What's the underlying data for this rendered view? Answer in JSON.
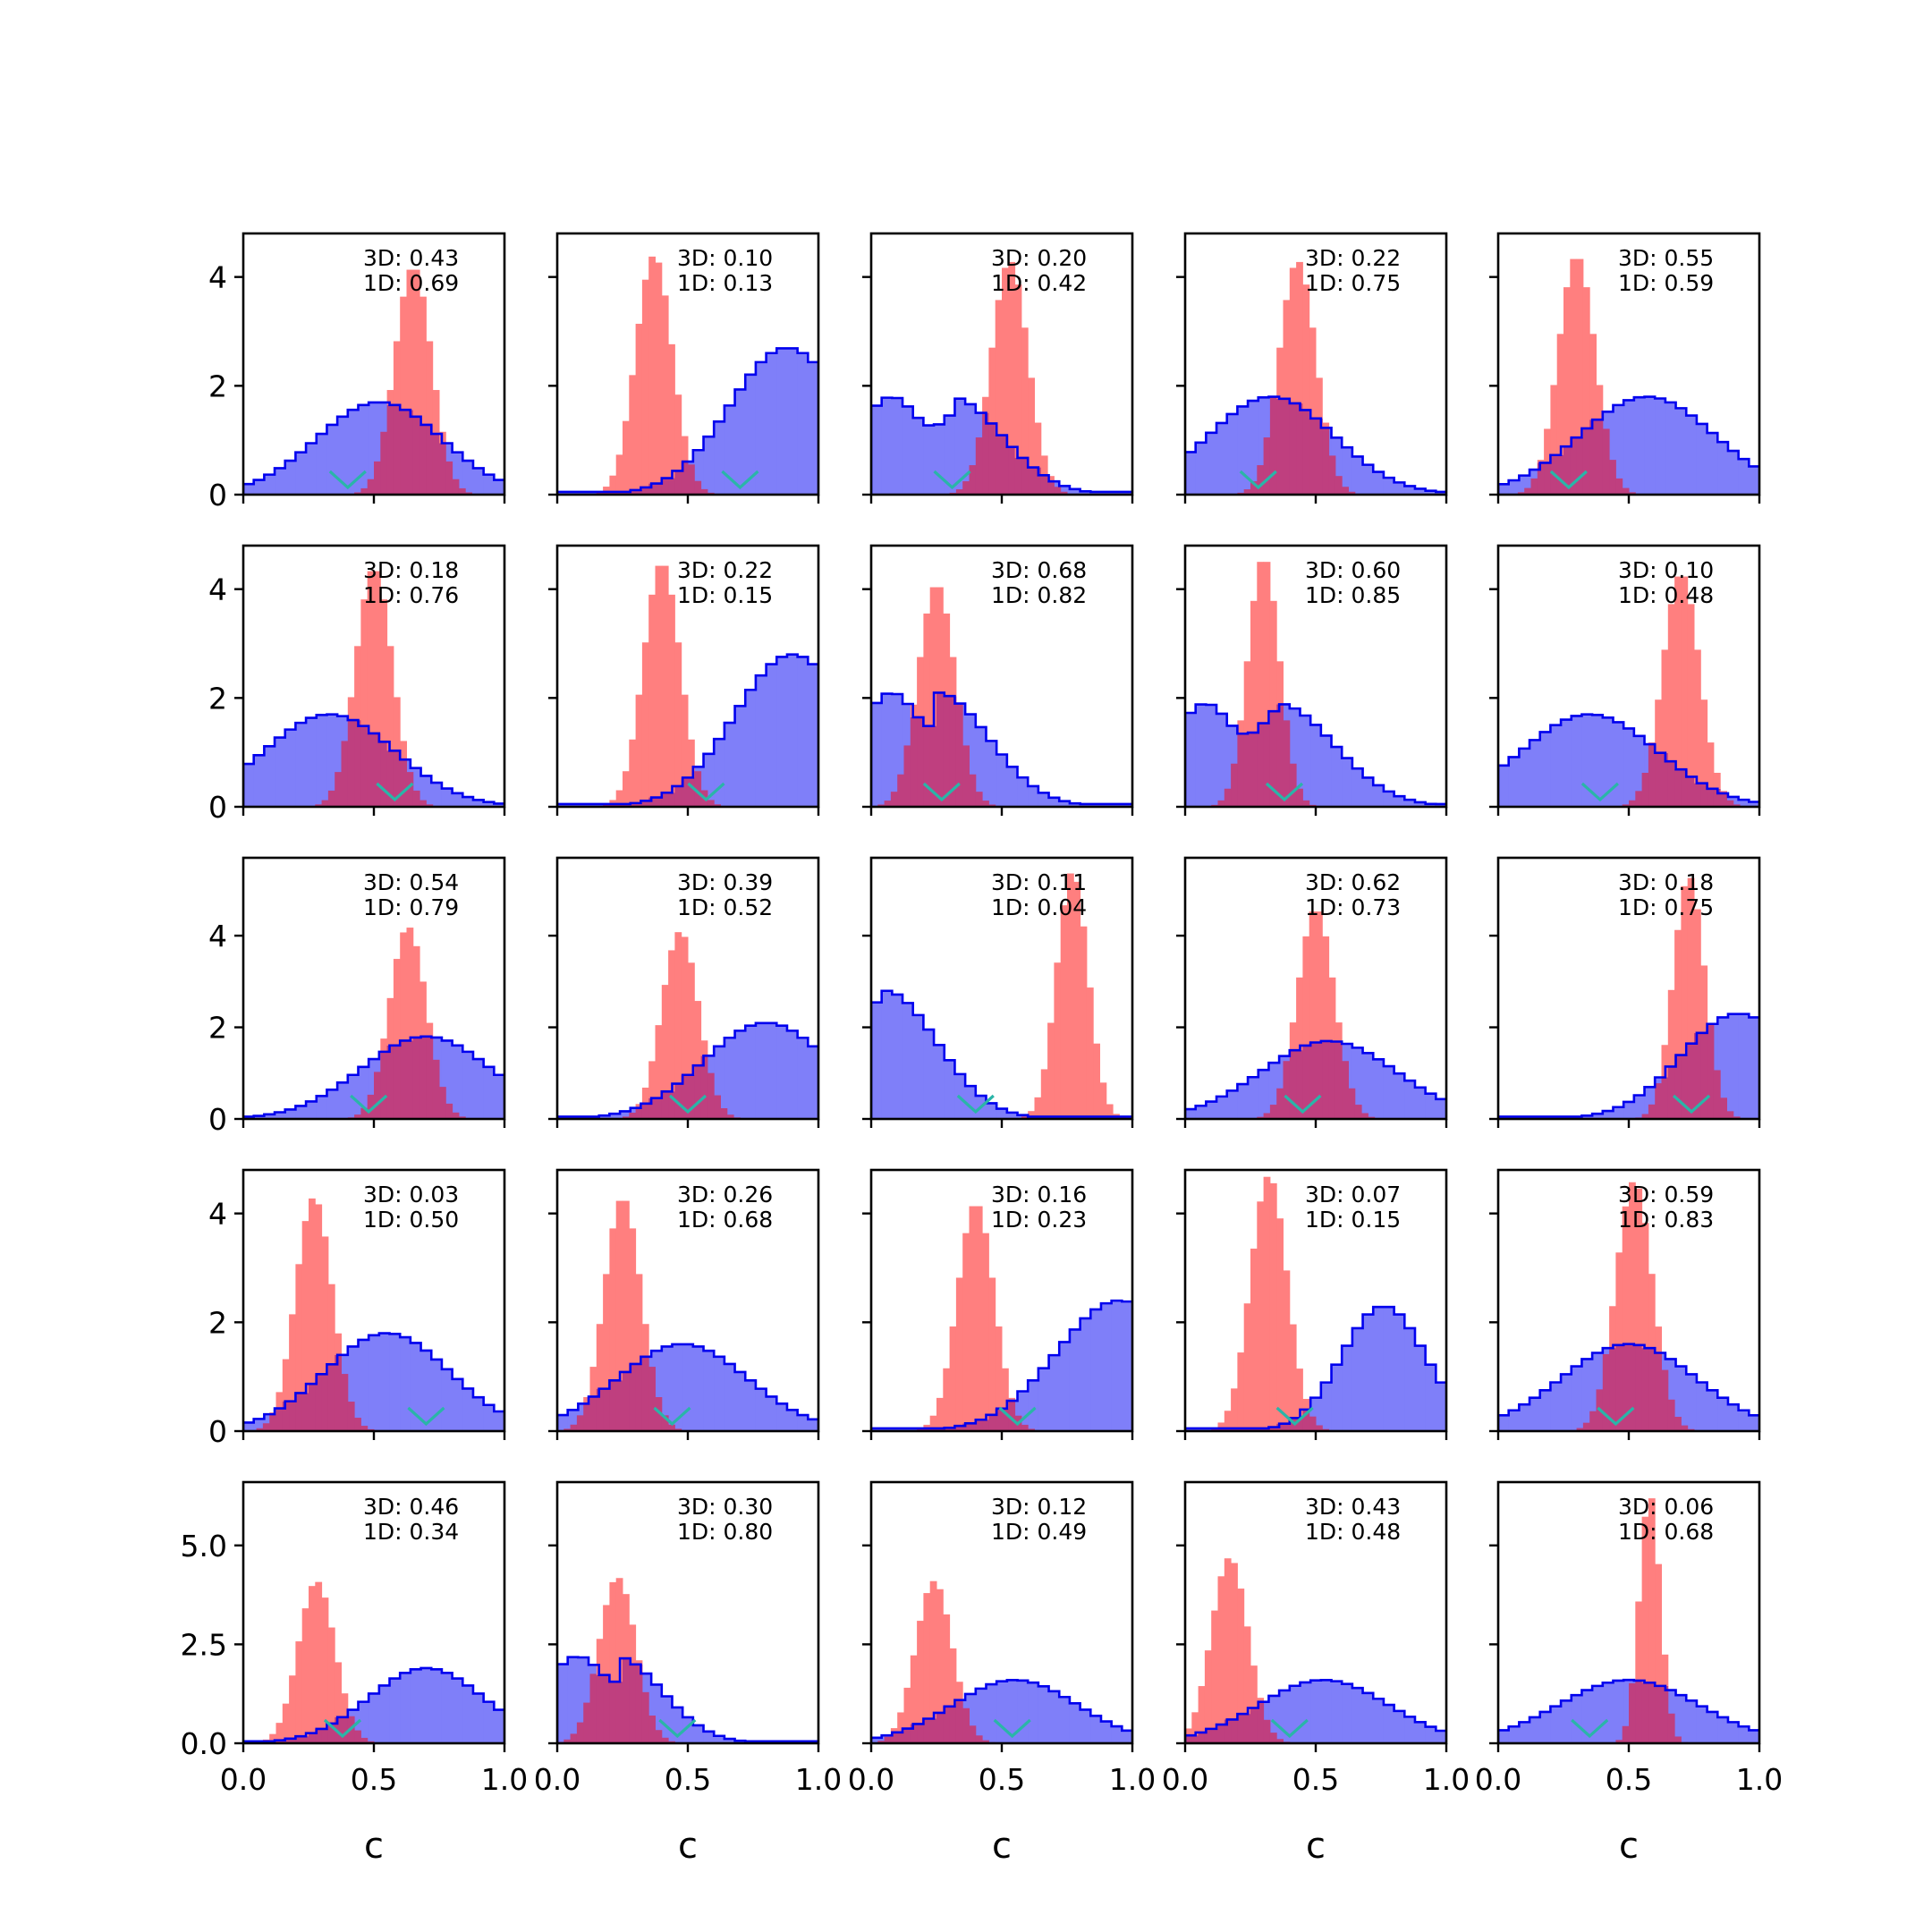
{
  "figure": {
    "rows": 5,
    "cols": 5,
    "xlabel": "c",
    "xticks": [
      "0.0",
      "0.5",
      "1.0"
    ],
    "x_range": [
      0,
      1
    ],
    "colors": {
      "blue_fill": "#7f7ff9",
      "blue_edge": "#0000ee",
      "red_fill": "#ff7f7f",
      "overlap": "#bf3f7f",
      "overlap_edge": "#5a1a6e",
      "marker": "#2ab5a8"
    },
    "row_axes": [
      {
        "yrange": [
          0,
          4.8
        ],
        "yticks": [
          "0",
          "2",
          "4"
        ],
        "ytick_values": [
          0,
          2,
          4
        ]
      },
      {
        "yrange": [
          0,
          4.8
        ],
        "yticks": [
          "0",
          "2",
          "4"
        ],
        "ytick_values": [
          0,
          2,
          4
        ]
      },
      {
        "yrange": [
          0,
          5.7
        ],
        "yticks": [
          "0",
          "2",
          "4"
        ],
        "ytick_values": [
          0,
          2,
          4
        ]
      },
      {
        "yrange": [
          0,
          4.8
        ],
        "yticks": [
          "0",
          "2",
          "4"
        ],
        "ytick_values": [
          0,
          2,
          4
        ]
      },
      {
        "yrange": [
          0,
          6.6
        ],
        "yticks": [
          "0.0",
          "2.5",
          "5.0"
        ],
        "ytick_values": [
          0,
          2.5,
          5.0
        ]
      }
    ]
  },
  "chart_data": [
    {
      "type": "histogram",
      "panel": "r1c1",
      "label_3d": "3D: 0.43",
      "label_1d": "1D: 0.69",
      "blue": {
        "shape": "normal",
        "center": 0.52,
        "width": 0.24,
        "peak": 1.7
      },
      "red": {
        "center": 0.65,
        "width": 0.07,
        "peak": 4.2
      },
      "marker_x": 0.4
    },
    {
      "type": "histogram",
      "panel": "r1c2",
      "label_3d": "3D: 0.10",
      "label_1d": "1D: 0.13",
      "blue": {
        "shape": "normal",
        "center": 0.88,
        "width": 0.22,
        "peak": 2.7
      },
      "red": {
        "center": 0.37,
        "width": 0.07,
        "peak": 4.4
      },
      "marker_x": 0.7
    },
    {
      "type": "histogram",
      "panel": "r1c3",
      "label_3d": "3D: 0.20",
      "label_1d": "1D: 0.42",
      "blue": {
        "shape": "decay",
        "flat": 0.3,
        "decay": 0.2,
        "peak": 1.8
      },
      "red": {
        "center": 0.53,
        "width": 0.07,
        "peak": 4.3
      },
      "marker_x": 0.31
    },
    {
      "type": "histogram",
      "panel": "r1c4",
      "label_3d": "3D: 0.22",
      "label_1d": "1D: 0.75",
      "blue": {
        "shape": "normal",
        "center": 0.33,
        "width": 0.24,
        "peak": 1.8
      },
      "red": {
        "center": 0.43,
        "width": 0.07,
        "peak": 4.3
      },
      "marker_x": 0.28
    },
    {
      "type": "histogram",
      "panel": "r1c5",
      "label_3d": "3D: 0.55",
      "label_1d": "1D: 0.59",
      "blue": {
        "shape": "normal",
        "center": 0.57,
        "width": 0.26,
        "peak": 1.8
      },
      "red": {
        "center": 0.3,
        "width": 0.07,
        "peak": 4.4
      },
      "marker_x": 0.27
    },
    {
      "type": "histogram",
      "panel": "r2c1",
      "label_3d": "3D: 0.18",
      "label_1d": "1D: 0.76",
      "blue": {
        "shape": "normal",
        "center": 0.33,
        "width": 0.25,
        "peak": 1.7
      },
      "red": {
        "center": 0.5,
        "width": 0.07,
        "peak": 4.4
      },
      "marker_x": 0.58
    },
    {
      "type": "histogram",
      "panel": "r2c2",
      "label_3d": "3D: 0.22",
      "label_1d": "1D: 0.15",
      "blue": {
        "shape": "normal",
        "center": 0.9,
        "width": 0.22,
        "peak": 2.8
      },
      "red": {
        "center": 0.4,
        "width": 0.07,
        "peak": 4.5
      },
      "marker_x": 0.57
    },
    {
      "type": "histogram",
      "panel": "r2c3",
      "label_3d": "3D: 0.68",
      "label_1d": "1D: 0.82",
      "blue": {
        "shape": "decay",
        "flat": 0.25,
        "decay": 0.2,
        "peak": 2.1
      },
      "red": {
        "center": 0.25,
        "width": 0.07,
        "peak": 4.1
      },
      "marker_x": 0.27
    },
    {
      "type": "histogram",
      "panel": "r2c4",
      "label_3d": "3D: 0.60",
      "label_1d": "1D: 0.85",
      "blue": {
        "shape": "decay",
        "flat": 0.35,
        "decay": 0.22,
        "peak": 1.9
      },
      "red": {
        "center": 0.3,
        "width": 0.06,
        "peak": 4.6
      },
      "marker_x": 0.38
    },
    {
      "type": "histogram",
      "panel": "r2c5",
      "label_3d": "3D: 0.10",
      "label_1d": "1D: 0.48",
      "blue": {
        "shape": "normal",
        "center": 0.35,
        "width": 0.26,
        "peak": 1.7
      },
      "red": {
        "center": 0.7,
        "width": 0.07,
        "peak": 4.3
      },
      "marker_x": 0.39
    },
    {
      "type": "histogram",
      "panel": "r3c1",
      "label_3d": "3D: 0.54",
      "label_1d": "1D: 0.79",
      "blue": {
        "shape": "normal",
        "center": 0.7,
        "width": 0.25,
        "peak": 1.8
      },
      "red": {
        "center": 0.63,
        "width": 0.07,
        "peak": 4.2
      },
      "marker_x": 0.48
    },
    {
      "type": "histogram",
      "panel": "r3c2",
      "label_3d": "3D: 0.39",
      "label_1d": "1D: 0.52",
      "blue": {
        "shape": "normal",
        "center": 0.8,
        "width": 0.24,
        "peak": 2.1
      },
      "red": {
        "center": 0.47,
        "width": 0.07,
        "peak": 4.1
      },
      "marker_x": 0.5
    },
    {
      "type": "histogram",
      "panel": "r3c3",
      "label_3d": "3D: 0.11",
      "label_1d": "1D: 0.04",
      "blue": {
        "shape": "decay",
        "flat": 0.05,
        "decay": 0.2,
        "peak": 2.8
      },
      "red": {
        "center": 0.77,
        "width": 0.06,
        "peak": 5.4
      },
      "marker_x": 0.4
    },
    {
      "type": "histogram",
      "panel": "r3c4",
      "label_3d": "3D: 0.62",
      "label_1d": "1D: 0.73",
      "blue": {
        "shape": "normal",
        "center": 0.55,
        "width": 0.26,
        "peak": 1.7
      },
      "red": {
        "center": 0.5,
        "width": 0.07,
        "peak": 4.6
      },
      "marker_x": 0.45
    },
    {
      "type": "histogram",
      "panel": "r3c5",
      "label_3d": "3D: 0.18",
      "label_1d": "1D: 0.75",
      "blue": {
        "shape": "normal",
        "center": 0.92,
        "width": 0.22,
        "peak": 2.3
      },
      "red": {
        "center": 0.73,
        "width": 0.06,
        "peak": 5.3
      },
      "marker_x": 0.74
    },
    {
      "type": "histogram",
      "panel": "r4c1",
      "label_3d": "3D: 0.03",
      "label_1d": "1D: 0.50",
      "blue": {
        "shape": "normal",
        "center": 0.55,
        "width": 0.24,
        "peak": 1.8
      },
      "red": {
        "center": 0.27,
        "width": 0.07,
        "peak": 4.3
      },
      "marker_x": 0.7
    },
    {
      "type": "histogram",
      "panel": "r4c2",
      "label_3d": "3D: 0.26",
      "label_1d": "1D: 0.68",
      "blue": {
        "shape": "normal",
        "center": 0.48,
        "width": 0.25,
        "peak": 1.6
      },
      "red": {
        "center": 0.25,
        "width": 0.07,
        "peak": 4.3
      },
      "marker_x": 0.44
    },
    {
      "type": "histogram",
      "panel": "r4c3",
      "label_3d": "3D: 0.16",
      "label_1d": "1D: 0.23",
      "blue": {
        "shape": "normal",
        "center": 0.95,
        "width": 0.24,
        "peak": 2.4
      },
      "red": {
        "center": 0.4,
        "width": 0.07,
        "peak": 4.2
      },
      "marker_x": 0.56
    },
    {
      "type": "histogram",
      "panel": "r4c4",
      "label_3d": "3D: 0.07",
      "label_1d": "1D: 0.15",
      "blue": {
        "shape": "normal",
        "center": 0.76,
        "width": 0.16,
        "peak": 2.3
      },
      "red": {
        "center": 0.32,
        "width": 0.07,
        "peak": 4.7
      },
      "marker_x": 0.42
    },
    {
      "type": "histogram",
      "panel": "r4c5",
      "label_3d": "3D: 0.59",
      "label_1d": "1D: 0.83",
      "blue": {
        "shape": "normal",
        "center": 0.5,
        "width": 0.26,
        "peak": 1.6
      },
      "red": {
        "center": 0.52,
        "width": 0.07,
        "peak": 4.6
      },
      "marker_x": 0.45
    },
    {
      "type": "histogram",
      "panel": "r5c1",
      "label_3d": "3D: 0.46",
      "label_1d": "1D: 0.34",
      "blue": {
        "shape": "normal",
        "center": 0.7,
        "width": 0.22,
        "peak": 1.9
      },
      "red": {
        "center": 0.28,
        "width": 0.07,
        "peak": 4.1
      },
      "marker_x": 0.38
    },
    {
      "type": "histogram",
      "panel": "r5c2",
      "label_3d": "3D: 0.30",
      "label_1d": "1D: 0.80",
      "blue": {
        "shape": "decay",
        "flat": 0.22,
        "decay": 0.18,
        "peak": 2.2
      },
      "red": {
        "center": 0.23,
        "width": 0.07,
        "peak": 4.2
      },
      "marker_x": 0.46
    },
    {
      "type": "histogram",
      "panel": "r5c3",
      "label_3d": "3D: 0.12",
      "label_1d": "1D: 0.49",
      "blue": {
        "shape": "normal",
        "center": 0.55,
        "width": 0.24,
        "peak": 1.6
      },
      "red": {
        "center": 0.24,
        "width": 0.07,
        "peak": 4.1
      },
      "marker_x": 0.54
    },
    {
      "type": "histogram",
      "panel": "r5c4",
      "label_3d": "3D: 0.43",
      "label_1d": "1D: 0.48",
      "blue": {
        "shape": "normal",
        "center": 0.53,
        "width": 0.25,
        "peak": 1.6
      },
      "red": {
        "center": 0.17,
        "width": 0.07,
        "peak": 4.7
      },
      "marker_x": 0.4
    },
    {
      "type": "histogram",
      "panel": "r5c5",
      "label_3d": "3D: 0.06",
      "label_1d": "1D: 0.68",
      "blue": {
        "shape": "normal",
        "center": 0.5,
        "width": 0.27,
        "peak": 1.6
      },
      "red": {
        "center": 0.58,
        "width": 0.04,
        "peak": 6.3
      },
      "marker_x": 0.35
    }
  ]
}
